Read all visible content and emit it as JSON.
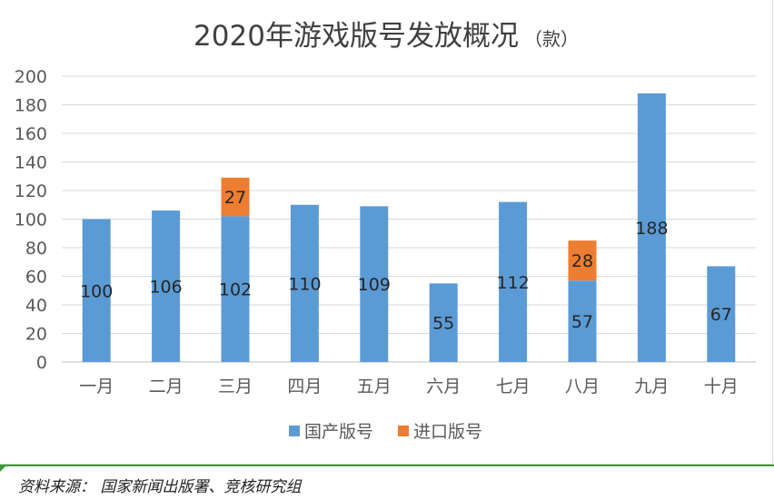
{
  "chart_data": {
    "type": "bar",
    "stacked": true,
    "title": "2020年游戏版号发放概况",
    "title_unit": "（款）",
    "categories": [
      "一月",
      "二月",
      "三月",
      "四月",
      "五月",
      "六月",
      "七月",
      "八月",
      "九月",
      "十月"
    ],
    "series": [
      {
        "name": "国产版号",
        "color": "#5b9bd5",
        "values": [
          100,
          106,
          102,
          110,
          109,
          55,
          112,
          57,
          188,
          67
        ]
      },
      {
        "name": "进口版号",
        "color": "#ed7d31",
        "values": [
          0,
          0,
          27,
          0,
          0,
          0,
          0,
          28,
          0,
          0
        ]
      }
    ],
    "ylim": [
      0,
      200
    ],
    "yticks": [
      0,
      20,
      40,
      60,
      80,
      100,
      120,
      140,
      160,
      180,
      200
    ],
    "grid": true,
    "legend_position": "bottom"
  },
  "source": "资料来源： 国家新闻出版署、竞核研究组"
}
